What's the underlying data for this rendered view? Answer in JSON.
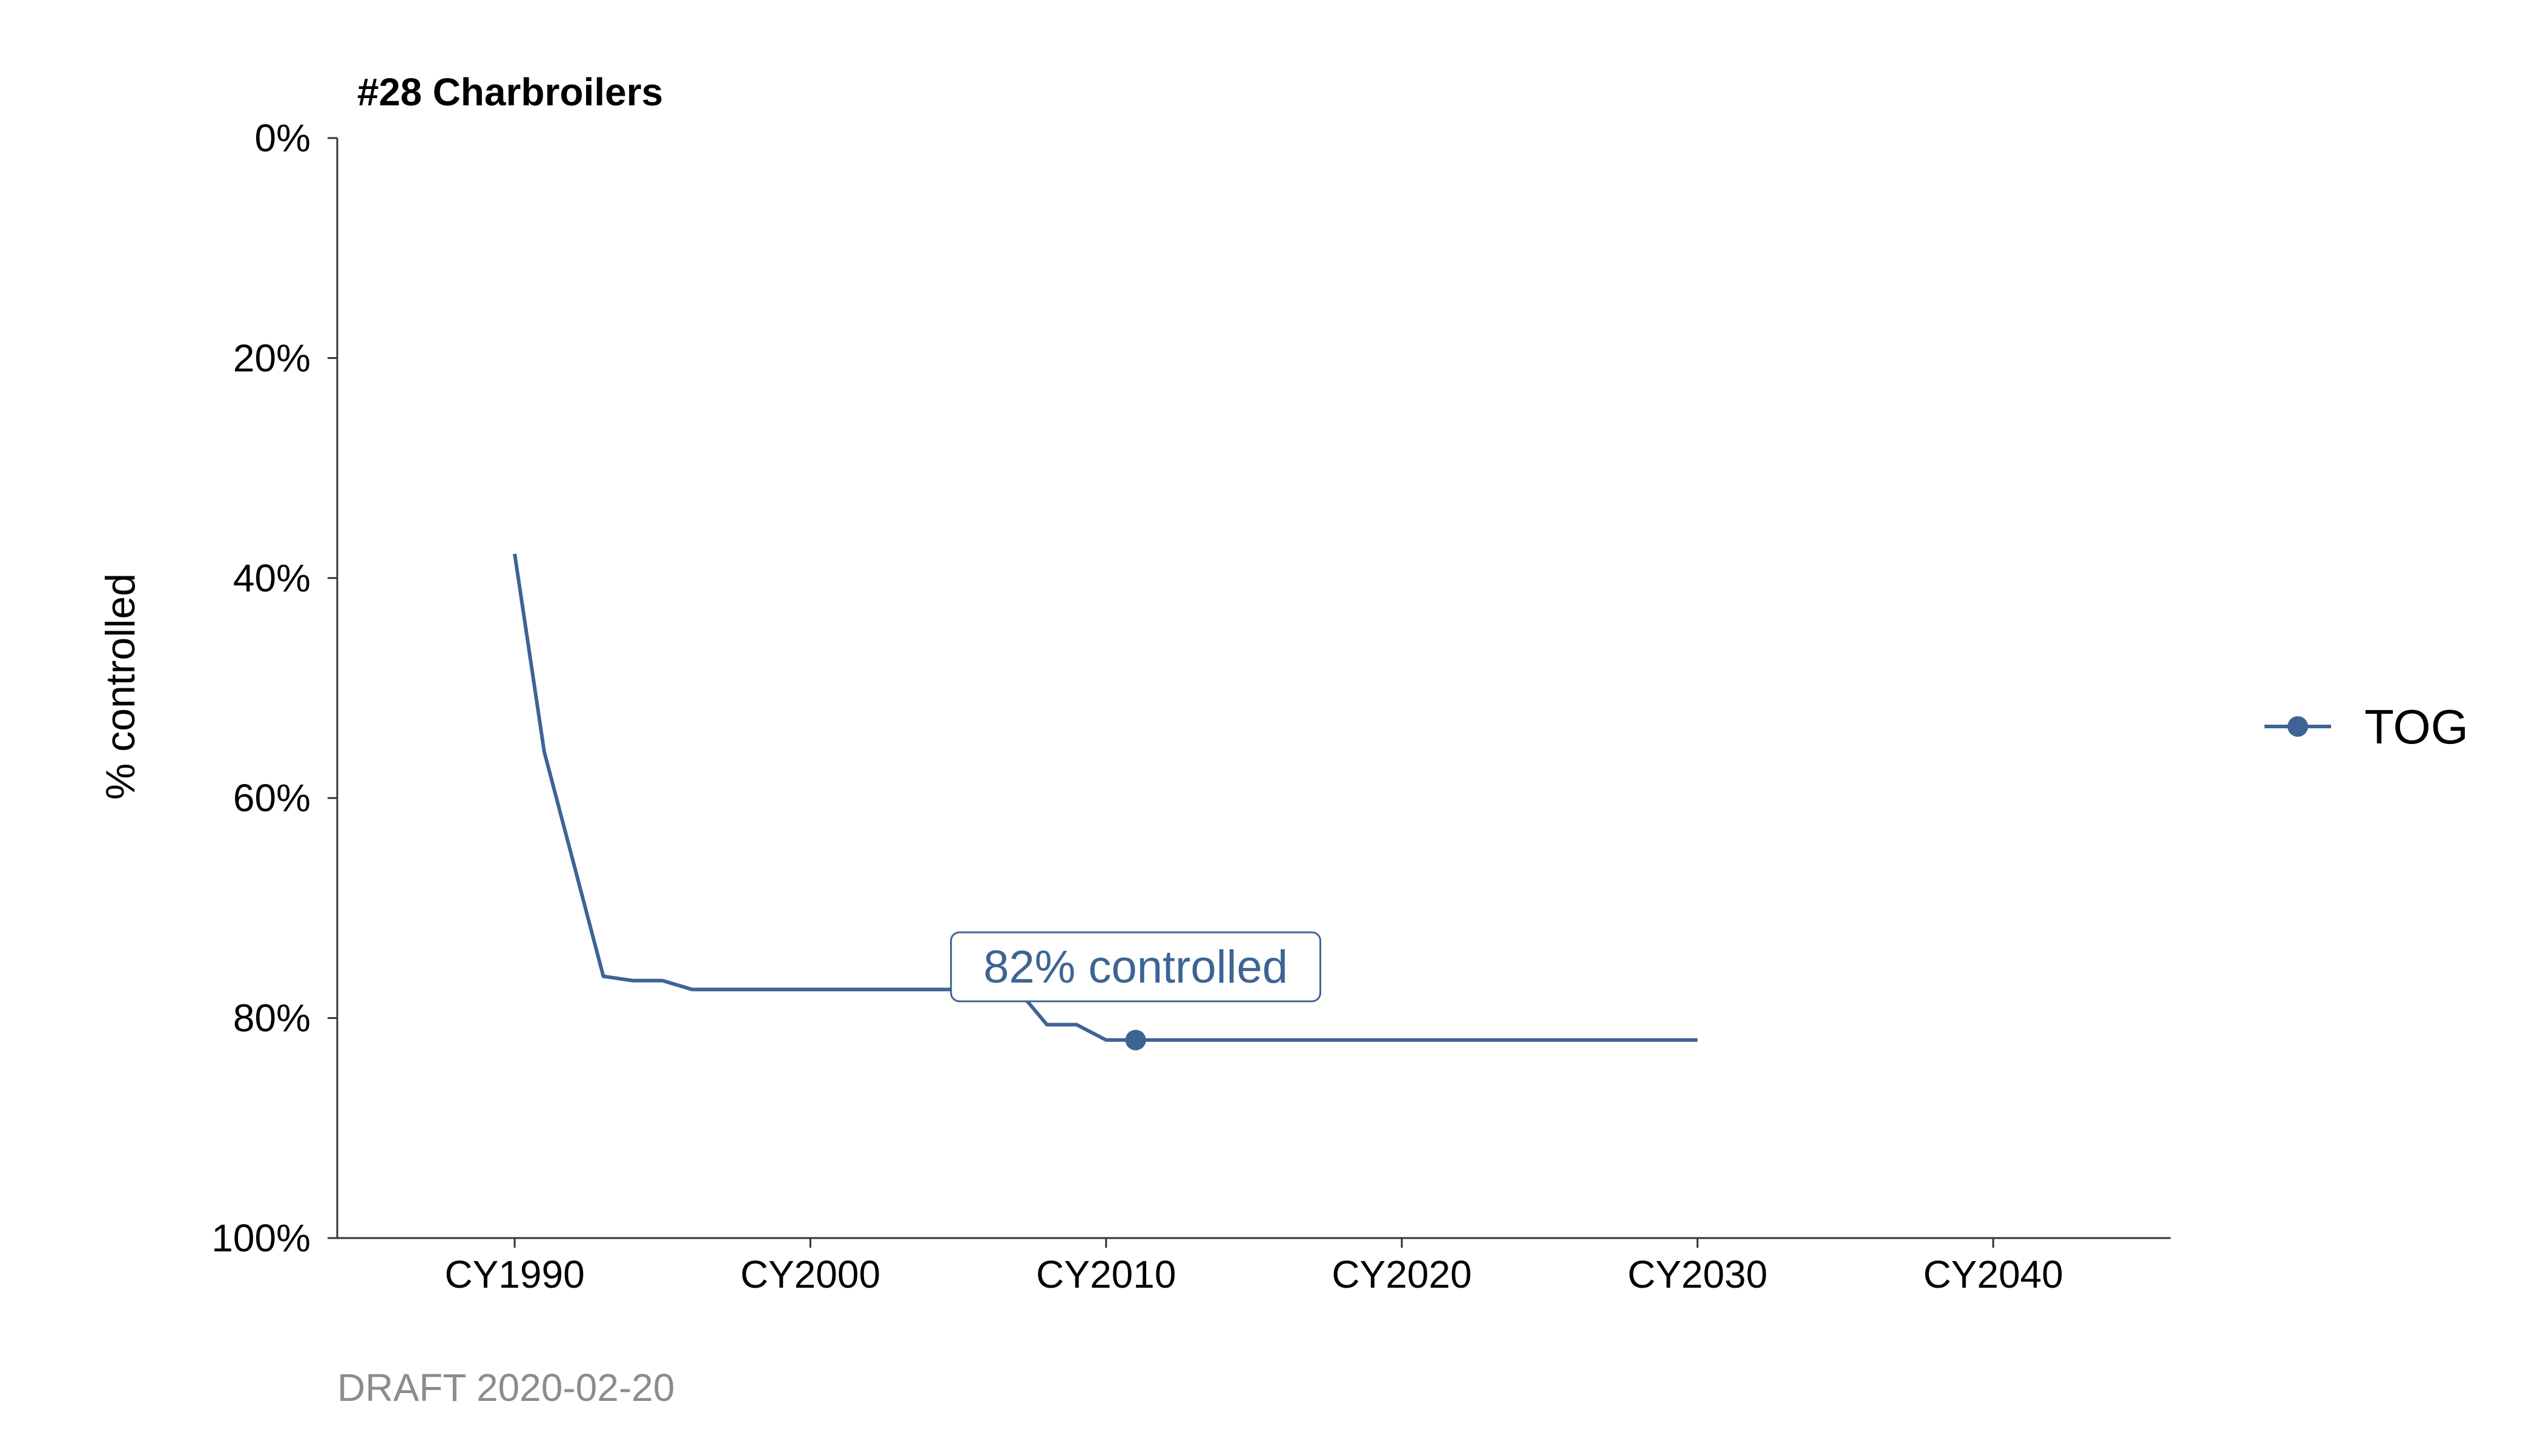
{
  "chart_data": {
    "type": "line",
    "title": "#28 Charbroilers",
    "xlabel": "",
    "ylabel": "% controlled",
    "caption": "DRAFT 2020-02-20",
    "xlim": [
      1984,
      2046
    ],
    "ylim": [
      100,
      0
    ],
    "y_reversed": true,
    "grid": false,
    "legend_position": "right",
    "x_ticks": [
      {
        "value": 1990,
        "label": "CY1990"
      },
      {
        "value": 2000,
        "label": "CY2000"
      },
      {
        "value": 2010,
        "label": "CY2010"
      },
      {
        "value": 2020,
        "label": "CY2020"
      },
      {
        "value": 2030,
        "label": "CY2030"
      },
      {
        "value": 2040,
        "label": "CY2040"
      }
    ],
    "y_ticks": [
      {
        "value": 0,
        "label": "0%"
      },
      {
        "value": 20,
        "label": "20%"
      },
      {
        "value": 40,
        "label": "40%"
      },
      {
        "value": 60,
        "label": "60%"
      },
      {
        "value": 80,
        "label": "80%"
      },
      {
        "value": 100,
        "label": "100%"
      }
    ],
    "series": [
      {
        "name": "TOG",
        "color": "#3d6494",
        "x": [
          1990,
          1991,
          1992,
          1993,
          1994,
          1995,
          1996,
          1997,
          1998,
          1999,
          2000,
          2001,
          2002,
          2003,
          2004,
          2005,
          2006,
          2007,
          2008,
          2009,
          2010,
          2011,
          2012,
          2013,
          2014,
          2015,
          2016,
          2017,
          2018,
          2019,
          2020,
          2021,
          2022,
          2023,
          2024,
          2025,
          2026,
          2027,
          2028,
          2029,
          2030
        ],
        "y": [
          37.8,
          55.8,
          66.0,
          76.2,
          76.6,
          76.6,
          77.4,
          77.4,
          77.4,
          77.4,
          77.4,
          77.4,
          77.4,
          77.4,
          77.4,
          77.4,
          77.4,
          77.4,
          80.6,
          80.6,
          82.0,
          82.0,
          82.0,
          82.0,
          82.0,
          82.0,
          82.0,
          82.0,
          82.0,
          82.0,
          82.0,
          82.0,
          82.0,
          82.0,
          82.0,
          82.0,
          82.0,
          82.0,
          82.0,
          82.0,
          82.0
        ]
      }
    ],
    "annotation": {
      "text": "82% controlled",
      "x": 2011,
      "y": 82.0
    }
  }
}
